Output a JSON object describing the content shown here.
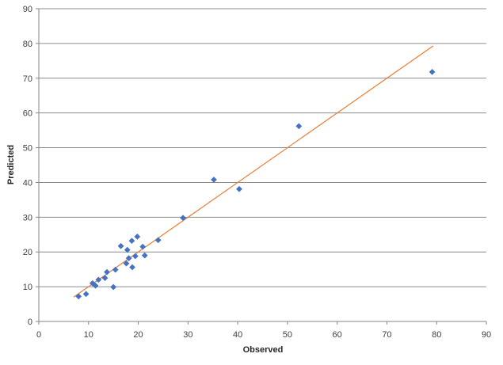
{
  "chart_data": {
    "type": "scatter",
    "xlabel": "Observed",
    "ylabel": "Predicted",
    "xlim": [
      0,
      90
    ],
    "ylim": [
      0,
      90
    ],
    "xticks": [
      0,
      10,
      20,
      30,
      40,
      50,
      60,
      70,
      80,
      90
    ],
    "yticks": [
      0,
      10,
      20,
      30,
      40,
      50,
      60,
      70,
      80,
      90
    ],
    "grid": "horizontal",
    "legend": "none",
    "series": [
      {
        "type": "scatter",
        "marker": "diamond",
        "color": "#4472C4",
        "points": [
          {
            "x": 8.0,
            "y": 7.2
          },
          {
            "x": 9.5,
            "y": 7.9
          },
          {
            "x": 10.8,
            "y": 11.0
          },
          {
            "x": 11.4,
            "y": 10.3
          },
          {
            "x": 12.0,
            "y": 12.0
          },
          {
            "x": 13.3,
            "y": 12.5
          },
          {
            "x": 13.7,
            "y": 14.2
          },
          {
            "x": 15.0,
            "y": 9.9
          },
          {
            "x": 15.4,
            "y": 14.9
          },
          {
            "x": 16.5,
            "y": 21.7
          },
          {
            "x": 17.6,
            "y": 16.7
          },
          {
            "x": 17.8,
            "y": 20.6
          },
          {
            "x": 18.1,
            "y": 18.2
          },
          {
            "x": 18.7,
            "y": 23.2
          },
          {
            "x": 18.8,
            "y": 15.6
          },
          {
            "x": 19.4,
            "y": 18.8
          },
          {
            "x": 19.8,
            "y": 24.4
          },
          {
            "x": 20.9,
            "y": 21.5
          },
          {
            "x": 21.3,
            "y": 19.0
          },
          {
            "x": 24.0,
            "y": 23.4
          },
          {
            "x": 29.0,
            "y": 29.8
          },
          {
            "x": 35.2,
            "y": 40.8
          },
          {
            "x": 40.3,
            "y": 38.1
          },
          {
            "x": 52.3,
            "y": 56.2
          },
          {
            "x": 79.1,
            "y": 71.8
          }
        ]
      },
      {
        "type": "line",
        "color": "#ED7D31",
        "points": [
          {
            "x": 7.0,
            "y": 7.0
          },
          {
            "x": 79.3,
            "y": 79.3
          }
        ]
      }
    ]
  }
}
